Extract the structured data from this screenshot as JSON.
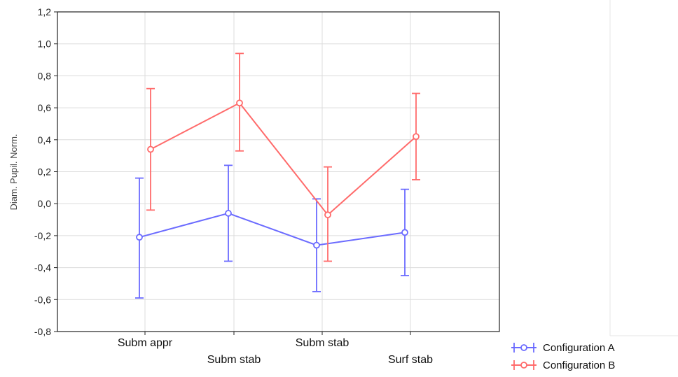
{
  "chart_data": {
    "type": "line",
    "title": "",
    "xlabel": "",
    "ylabel": "Diam. Pupil. Norm.",
    "ylim": [
      -0.8,
      1.2
    ],
    "y_ticks": [
      "1,2",
      "1,0",
      "0,8",
      "0,6",
      "0,4",
      "0,2",
      "0,0",
      "-0,2",
      "-0,4",
      "-0,6",
      "-0,8"
    ],
    "y_tick_values": [
      1.2,
      1.0,
      0.8,
      0.6,
      0.4,
      0.2,
      0.0,
      -0.2,
      -0.4,
      -0.6,
      -0.8
    ],
    "categories": [
      "Subm appr",
      "Subm stab",
      "Subm stab",
      "Surf stab"
    ],
    "grid": true,
    "legend_position": "bottom-right",
    "series": [
      {
        "name": "Configuration A",
        "color": "#6b6bff",
        "values": [
          -0.21,
          -0.06,
          -0.26,
          -0.18
        ],
        "error_low": [
          -0.59,
          -0.36,
          -0.55,
          -0.45
        ],
        "error_high": [
          0.16,
          0.24,
          0.03,
          0.09
        ]
      },
      {
        "name": "Configuration B",
        "color": "#ff6b6b",
        "values": [
          0.34,
          0.63,
          -0.07,
          0.42
        ],
        "error_low": [
          -0.04,
          0.33,
          -0.36,
          0.15
        ],
        "error_high": [
          0.72,
          0.94,
          0.23,
          0.69
        ]
      }
    ]
  }
}
